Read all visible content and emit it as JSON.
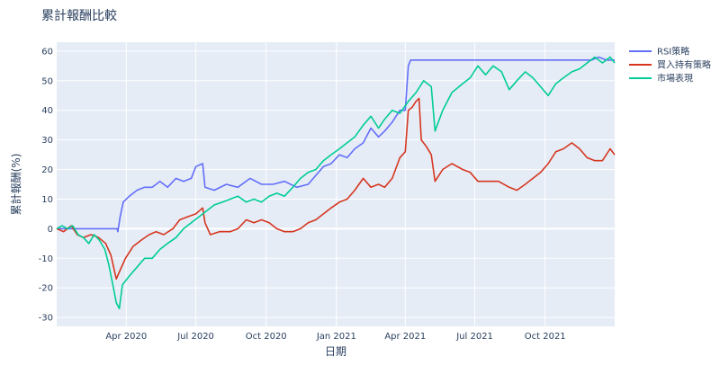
{
  "chart_data": {
    "type": "line",
    "title": "累計報酬比較",
    "xlabel": "日期",
    "ylabel": "累計報酬(%)",
    "x_range": [
      "2020-01-01",
      "2021-12-31"
    ],
    "ylim": [
      -33,
      63
    ],
    "x_ticks": [
      {
        "date": "2020-04-01",
        "label": "Apr 2020"
      },
      {
        "date": "2020-07-01",
        "label": "Jul 2020"
      },
      {
        "date": "2020-10-01",
        "label": "Oct 2020"
      },
      {
        "date": "2021-01-01",
        "label": "Jan 2021"
      },
      {
        "date": "2021-04-01",
        "label": "Apr 2021"
      },
      {
        "date": "2021-07-01",
        "label": "Jul 2021"
      },
      {
        "date": "2021-10-01",
        "label": "Oct 2021"
      }
    ],
    "y_ticks": [
      -30,
      -20,
      -10,
      0,
      10,
      20,
      30,
      40,
      50,
      60
    ],
    "grid": true,
    "legend_position": "top-right",
    "series": [
      {
        "name": "RSI策略",
        "color": "#636efa",
        "points": [
          [
            "2020-01-01",
            0
          ],
          [
            "2020-03-10",
            0
          ],
          [
            "2020-03-20",
            0
          ],
          [
            "2020-03-21",
            -1
          ],
          [
            "2020-03-24",
            4
          ],
          [
            "2020-03-28",
            9
          ],
          [
            "2020-04-05",
            11
          ],
          [
            "2020-04-15",
            13
          ],
          [
            "2020-04-25",
            14
          ],
          [
            "2020-05-05",
            14
          ],
          [
            "2020-05-15",
            16
          ],
          [
            "2020-05-25",
            14
          ],
          [
            "2020-06-05",
            17
          ],
          [
            "2020-06-15",
            16
          ],
          [
            "2020-06-25",
            17
          ],
          [
            "2020-07-01",
            21
          ],
          [
            "2020-07-10",
            22
          ],
          [
            "2020-07-13",
            14
          ],
          [
            "2020-07-25",
            13
          ],
          [
            "2020-08-10",
            15
          ],
          [
            "2020-08-25",
            14
          ],
          [
            "2020-09-10",
            17
          ],
          [
            "2020-09-25",
            15
          ],
          [
            "2020-10-10",
            15
          ],
          [
            "2020-10-25",
            16
          ],
          [
            "2020-11-10",
            14
          ],
          [
            "2020-11-25",
            15
          ],
          [
            "2020-12-05",
            18
          ],
          [
            "2020-12-15",
            21
          ],
          [
            "2020-12-25",
            22
          ],
          [
            "2021-01-05",
            25
          ],
          [
            "2021-01-15",
            24
          ],
          [
            "2021-01-25",
            27
          ],
          [
            "2021-02-05",
            29
          ],
          [
            "2021-02-15",
            34
          ],
          [
            "2021-02-25",
            31
          ],
          [
            "2021-03-05",
            33
          ],
          [
            "2021-03-15",
            36
          ],
          [
            "2021-03-25",
            40
          ],
          [
            "2021-04-01",
            40
          ],
          [
            "2021-04-05",
            55
          ],
          [
            "2021-04-08",
            57
          ],
          [
            "2021-05-01",
            57
          ],
          [
            "2021-06-01",
            57
          ],
          [
            "2021-07-01",
            57
          ],
          [
            "2021-08-01",
            57
          ],
          [
            "2021-09-01",
            57
          ],
          [
            "2021-10-01",
            57
          ],
          [
            "2021-11-01",
            57
          ],
          [
            "2021-12-01",
            57
          ],
          [
            "2021-12-10",
            58
          ],
          [
            "2021-12-20",
            57
          ],
          [
            "2021-12-31",
            57
          ]
        ]
      },
      {
        "name": "買入持有策略",
        "color": "#d6361f",
        "points": [
          [
            "2020-01-01",
            0
          ],
          [
            "2020-01-10",
            -1
          ],
          [
            "2020-01-20",
            1
          ],
          [
            "2020-01-28",
            -2
          ],
          [
            "2020-02-05",
            -3
          ],
          [
            "2020-02-15",
            -2
          ],
          [
            "2020-02-25",
            -3
          ],
          [
            "2020-03-05",
            -5
          ],
          [
            "2020-03-12",
            -9
          ],
          [
            "2020-03-19",
            -17
          ],
          [
            "2020-03-24",
            -14
          ],
          [
            "2020-03-31",
            -10
          ],
          [
            "2020-04-10",
            -6
          ],
          [
            "2020-04-20",
            -4
          ],
          [
            "2020-05-01",
            -2
          ],
          [
            "2020-05-10",
            -1
          ],
          [
            "2020-05-20",
            -2
          ],
          [
            "2020-06-01",
            0
          ],
          [
            "2020-06-10",
            3
          ],
          [
            "2020-06-20",
            4
          ],
          [
            "2020-07-01",
            5
          ],
          [
            "2020-07-10",
            7
          ],
          [
            "2020-07-13",
            2
          ],
          [
            "2020-07-20",
            -2
          ],
          [
            "2020-08-01",
            -1
          ],
          [
            "2020-08-15",
            -1
          ],
          [
            "2020-08-25",
            0
          ],
          [
            "2020-09-05",
            3
          ],
          [
            "2020-09-15",
            2
          ],
          [
            "2020-09-25",
            3
          ],
          [
            "2020-10-05",
            2
          ],
          [
            "2020-10-15",
            0
          ],
          [
            "2020-10-25",
            -1
          ],
          [
            "2020-11-05",
            -1
          ],
          [
            "2020-11-15",
            0
          ],
          [
            "2020-11-25",
            2
          ],
          [
            "2020-12-05",
            3
          ],
          [
            "2020-12-15",
            5
          ],
          [
            "2020-12-25",
            7
          ],
          [
            "2021-01-05",
            9
          ],
          [
            "2021-01-15",
            10
          ],
          [
            "2021-01-25",
            13
          ],
          [
            "2021-02-05",
            17
          ],
          [
            "2021-02-15",
            14
          ],
          [
            "2021-02-25",
            15
          ],
          [
            "2021-03-05",
            14
          ],
          [
            "2021-03-15",
            17
          ],
          [
            "2021-03-25",
            24
          ],
          [
            "2021-04-01",
            26
          ],
          [
            "2021-04-05",
            40
          ],
          [
            "2021-04-10",
            41
          ],
          [
            "2021-04-15",
            43
          ],
          [
            "2021-04-19",
            44
          ],
          [
            "2021-04-22",
            30
          ],
          [
            "2021-04-28",
            28
          ],
          [
            "2021-05-05",
            25
          ],
          [
            "2021-05-10",
            16
          ],
          [
            "2021-05-20",
            20
          ],
          [
            "2021-06-01",
            22
          ],
          [
            "2021-06-15",
            20
          ],
          [
            "2021-06-25",
            19
          ],
          [
            "2021-07-05",
            16
          ],
          [
            "2021-07-20",
            16
          ],
          [
            "2021-08-01",
            16
          ],
          [
            "2021-08-15",
            14
          ],
          [
            "2021-08-25",
            13
          ],
          [
            "2021-09-05",
            15
          ],
          [
            "2021-09-15",
            17
          ],
          [
            "2021-09-25",
            19
          ],
          [
            "2021-10-05",
            22
          ],
          [
            "2021-10-15",
            26
          ],
          [
            "2021-10-25",
            27
          ],
          [
            "2021-11-05",
            29
          ],
          [
            "2021-11-15",
            27
          ],
          [
            "2021-11-25",
            24
          ],
          [
            "2021-12-05",
            23
          ],
          [
            "2021-12-15",
            23
          ],
          [
            "2021-12-25",
            27
          ],
          [
            "2021-12-31",
            25
          ]
        ]
      },
      {
        "name": "市場表現",
        "color": "#00cc96",
        "points": [
          [
            "2020-01-01",
            0
          ],
          [
            "2020-01-08",
            1
          ],
          [
            "2020-01-15",
            0
          ],
          [
            "2020-01-22",
            1
          ],
          [
            "2020-01-29",
            -2
          ],
          [
            "2020-02-05",
            -3
          ],
          [
            "2020-02-12",
            -5
          ],
          [
            "2020-02-19",
            -2
          ],
          [
            "2020-02-26",
            -4
          ],
          [
            "2020-03-04",
            -7
          ],
          [
            "2020-03-09",
            -12
          ],
          [
            "2020-03-16",
            -21
          ],
          [
            "2020-03-19",
            -25
          ],
          [
            "2020-03-23",
            -27
          ],
          [
            "2020-03-27",
            -19
          ],
          [
            "2020-04-05",
            -16
          ],
          [
            "2020-04-15",
            -13
          ],
          [
            "2020-04-25",
            -10
          ],
          [
            "2020-05-05",
            -10
          ],
          [
            "2020-05-15",
            -7
          ],
          [
            "2020-05-25",
            -5
          ],
          [
            "2020-06-05",
            -3
          ],
          [
            "2020-06-15",
            0
          ],
          [
            "2020-06-25",
            2
          ],
          [
            "2020-07-05",
            4
          ],
          [
            "2020-07-15",
            6
          ],
          [
            "2020-07-25",
            8
          ],
          [
            "2020-08-05",
            9
          ],
          [
            "2020-08-15",
            10
          ],
          [
            "2020-08-25",
            11
          ],
          [
            "2020-09-05",
            9
          ],
          [
            "2020-09-15",
            10
          ],
          [
            "2020-09-25",
            9
          ],
          [
            "2020-10-05",
            11
          ],
          [
            "2020-10-15",
            12
          ],
          [
            "2020-10-25",
            11
          ],
          [
            "2020-11-05",
            14
          ],
          [
            "2020-11-15",
            17
          ],
          [
            "2020-11-25",
            19
          ],
          [
            "2020-12-05",
            20
          ],
          [
            "2020-12-15",
            23
          ],
          [
            "2020-12-25",
            25
          ],
          [
            "2021-01-05",
            27
          ],
          [
            "2021-01-15",
            29
          ],
          [
            "2021-01-25",
            31
          ],
          [
            "2021-02-05",
            35
          ],
          [
            "2021-02-15",
            38
          ],
          [
            "2021-02-25",
            34
          ],
          [
            "2021-03-05",
            37
          ],
          [
            "2021-03-15",
            40
          ],
          [
            "2021-03-25",
            39
          ],
          [
            "2021-04-05",
            43
          ],
          [
            "2021-04-15",
            46
          ],
          [
            "2021-04-25",
            50
          ],
          [
            "2021-05-05",
            48
          ],
          [
            "2021-05-10",
            33
          ],
          [
            "2021-05-20",
            40
          ],
          [
            "2021-06-01",
            46
          ],
          [
            "2021-06-15",
            49
          ],
          [
            "2021-06-25",
            51
          ],
          [
            "2021-07-05",
            55
          ],
          [
            "2021-07-15",
            52
          ],
          [
            "2021-07-25",
            55
          ],
          [
            "2021-08-05",
            53
          ],
          [
            "2021-08-15",
            47
          ],
          [
            "2021-08-25",
            50
          ],
          [
            "2021-09-05",
            53
          ],
          [
            "2021-09-15",
            51
          ],
          [
            "2021-09-25",
            48
          ],
          [
            "2021-10-05",
            45
          ],
          [
            "2021-10-15",
            49
          ],
          [
            "2021-10-25",
            51
          ],
          [
            "2021-11-05",
            53
          ],
          [
            "2021-11-15",
            54
          ],
          [
            "2021-11-25",
            56
          ],
          [
            "2021-12-05",
            58
          ],
          [
            "2021-12-15",
            56
          ],
          [
            "2021-12-25",
            58
          ],
          [
            "2021-12-31",
            56
          ]
        ]
      }
    ]
  }
}
